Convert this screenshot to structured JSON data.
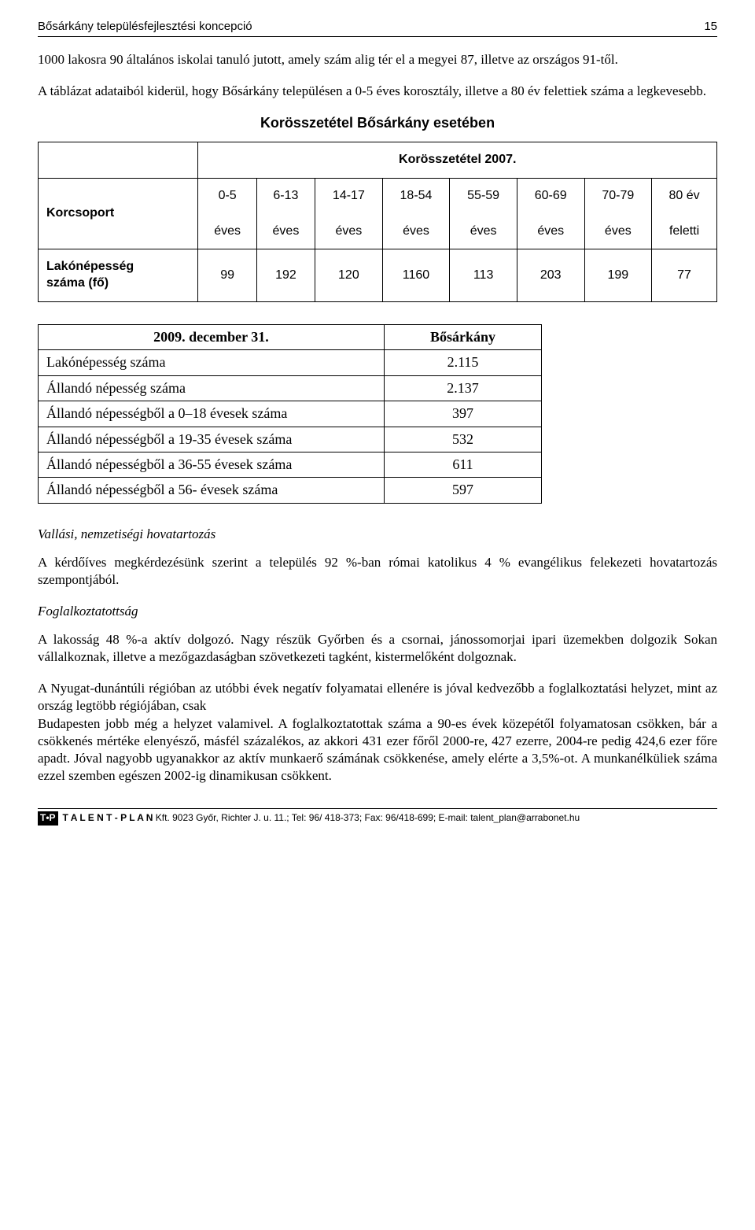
{
  "header": {
    "title": "Bősárkány településfejlesztési koncepció",
    "page": "15"
  },
  "intro1": "1000 lakosra 90 általános iskolai tanuló jutott, amely szám alig tér el a megyei 87, illetve az országos 91-től.",
  "intro2": "A táblázat adataiból kiderül, hogy Bősárkány településen a 0-5 éves korosztály, illetve a 80 év felettiek száma a legkevesebb.",
  "kor": {
    "title": "Korösszetétel Bősárkány esetében",
    "yearhead": "Korösszetétel 2007.",
    "rowlabel_group": "Korcsoport",
    "rowlabel_pop1": "Lakónépesség",
    "rowlabel_pop2": "száma (fő)",
    "cols": [
      "0-5",
      "6-13",
      "14-17",
      "18-54",
      "55-59",
      "60-69",
      "70-79",
      "80 év"
    ],
    "cols_l2": [
      "éves",
      "éves",
      "éves",
      "éves",
      "éves",
      "éves",
      "éves",
      "feletti"
    ],
    "vals": [
      "99",
      "192",
      "120",
      "1160",
      "113",
      "203",
      "199",
      "77"
    ]
  },
  "pop": {
    "head_date": "2009. december 31.",
    "head_place": "Bősárkány",
    "rows": [
      {
        "label": "Lakónépesség száma",
        "val": "2.115"
      },
      {
        "label": "Állandó népesség száma",
        "val": "2.137"
      },
      {
        "label": "Állandó népességből a 0–18 évesek száma",
        "val": "397"
      },
      {
        "label": "Állandó népességből a 19-35 évesek száma",
        "val": "532"
      },
      {
        "label": "Állandó népességből a 36-55 évesek száma",
        "val": "611"
      },
      {
        "label": "Állandó népességből a 56-  évesek száma",
        "val": "597"
      }
    ]
  },
  "vallasi": {
    "head": "Vallási, nemzetiségi hovatartozás",
    "body": "A kérdőíves megkérdezésünk szerint a település 92 %-ban római katolikus 4 % evangélikus felekezeti hovatartozás szempontjából."
  },
  "foglalk": {
    "head": "Foglalkoztatottság",
    "p1": "A lakosság 48 %-a aktív dolgozó. Nagy részük Győrben és a csornai, jánossomorjai ipari üzemekben dolgozik Sokan vállalkoznak, illetve a mezőgazdaságban szövetkezeti tagként, kistermelőként dolgoznak.",
    "p2": "A Nyugat-dunántúli régióban az utóbbi évek negatív folyamatai ellenére is jóval kedvezőbb a foglalkoztatási helyzet, mint az ország legtöbb régiójában, csak",
    "p3": "Budapesten jobb még a helyzet valamivel. A foglalkoztatottak száma a 90-es évek közepétől folyamatosan csökken, bár a csökkenés mértéke elenyésző, másfél százalékos, az akkori 431 ezer főről 2000-re, 427 ezerre, 2004-re pedig 424,6 ezer főre apadt. Jóval nagyobb ugyanakkor az aktív munkaerő számának csökkenése, amely elérte a 3,5%-ot. A munkanélküliek száma ezzel szemben egészen 2002-ig dinamikusan csökkent."
  },
  "footer": {
    "tp": "T•P",
    "company": "T A L E N T - P L A N",
    "rest": " Kft.  9023 Győr, Richter J. u. 11.; Tel: 96/ 418-373; Fax: 96/418-699; E-mail: talent_plan@arrabonet.hu"
  }
}
